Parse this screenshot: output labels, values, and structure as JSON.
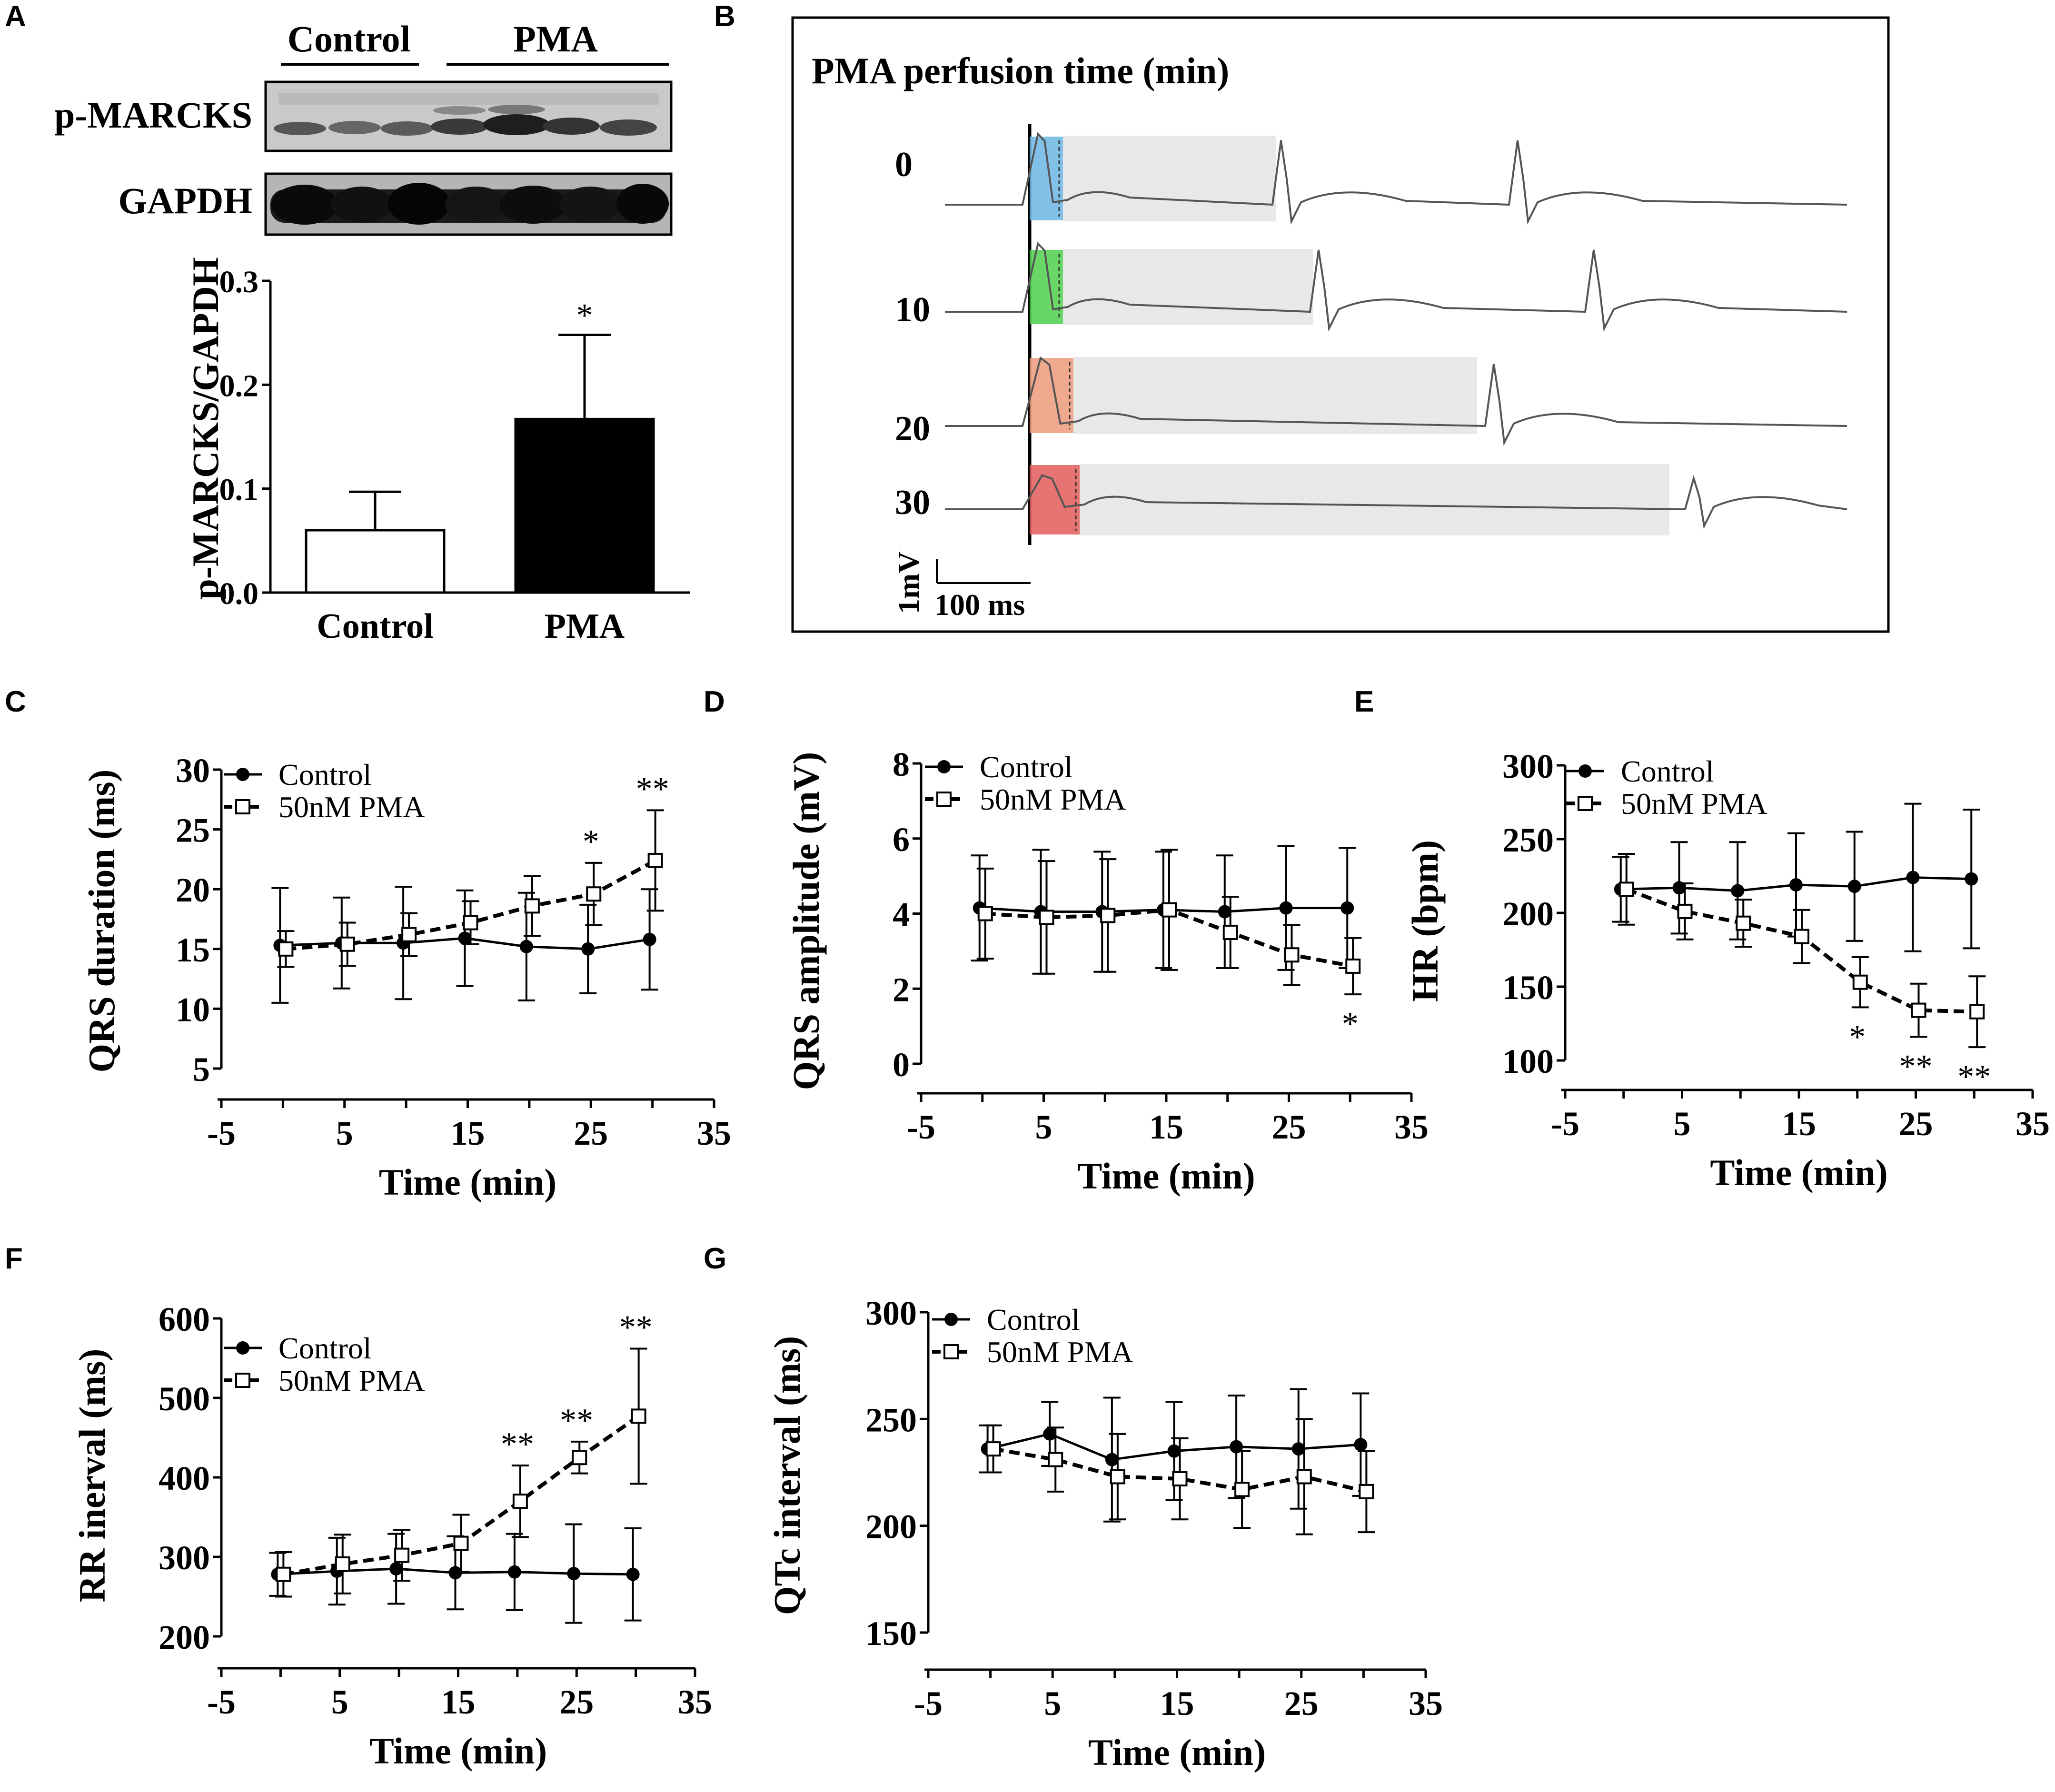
{
  "panel_labels": {
    "a": "A",
    "b": "B",
    "c": "C",
    "d": "D",
    "e": "E",
    "f": "F",
    "g": "G"
  },
  "colors": {
    "ink": "#000000",
    "control_fill": "#ffffff",
    "pma_fill": "#000000",
    "shade": "#e8e8e8",
    "qrs0": "#6bb6e3",
    "qrs10": "#4dd04d",
    "qrs20": "#eb9a7a",
    "qrs30": "#e35a5a",
    "trace": "#555555"
  },
  "blot": {
    "group_labels": [
      "Control",
      "PMA"
    ],
    "row_labels": [
      "p-MARCKS",
      "GAPDH"
    ]
  },
  "ecg": {
    "title": "PMA perfusion time (min)",
    "trace_labels": [
      "0",
      "10",
      "20",
      "30"
    ],
    "scale_v": "1mV",
    "scale_h": "100 ms"
  },
  "chart_data": [
    {
      "id": "A",
      "type": "bar",
      "categories": [
        "Control",
        "PMA"
      ],
      "values": [
        0.06,
        0.167
      ],
      "errors": [
        0.037,
        0.081
      ],
      "annotations": [
        "",
        "*"
      ],
      "ylabel": "p-MARCKS/GAPDH",
      "ylim": [
        0,
        0.3
      ],
      "yticks": [
        "0.0",
        "0.1",
        "0.2",
        "0.3"
      ]
    },
    {
      "id": "C",
      "type": "line",
      "ylabel": "QRS duration (ms)",
      "xlabel": "Time (min)",
      "xlim": [
        -5,
        35
      ],
      "ylim": [
        5,
        30
      ],
      "xticks": [
        "-5",
        "5",
        "15",
        "25",
        "35"
      ],
      "yticks": [
        "5",
        "10",
        "15",
        "20",
        "25",
        "30"
      ],
      "x": [
        0,
        5,
        10,
        15,
        20,
        25,
        30
      ],
      "series": [
        {
          "name": "Control",
          "values": [
            15.3,
            15.5,
            15.5,
            15.9,
            15.2,
            15.0,
            15.8
          ],
          "errors": [
            4.8,
            3.8,
            4.7,
            4.0,
            4.5,
            3.7,
            4.2
          ]
        },
        {
          "name": "50nM PMA",
          "values": [
            15.0,
            15.4,
            16.2,
            17.2,
            18.6,
            19.6,
            22.4
          ],
          "errors": [
            1.5,
            1.8,
            1.8,
            1.8,
            2.5,
            2.6,
            4.2
          ]
        }
      ],
      "annotations": [
        {
          "x": 25,
          "text": "*"
        },
        {
          "x": 30,
          "text": "**"
        }
      ]
    },
    {
      "id": "D",
      "type": "line",
      "ylabel": "QRS amplitude (mV)",
      "xlabel": "Time (min)",
      "xlim": [
        -5,
        35
      ],
      "ylim": [
        0,
        8
      ],
      "xticks": [
        "-5",
        "5",
        "15",
        "25",
        "35"
      ],
      "yticks": [
        "0",
        "2",
        "4",
        "6",
        "8"
      ],
      "x": [
        0,
        5,
        10,
        15,
        20,
        25,
        30
      ],
      "series": [
        {
          "name": "Control",
          "values": [
            4.15,
            4.05,
            4.05,
            4.1,
            4.05,
            4.15,
            4.15
          ],
          "errors": [
            1.4,
            1.65,
            1.6,
            1.55,
            1.5,
            1.65,
            1.6
          ]
        },
        {
          "name": "50nM PMA",
          "values": [
            4.0,
            3.9,
            3.95,
            4.1,
            3.5,
            2.9,
            2.6
          ],
          "errors": [
            1.2,
            1.5,
            1.5,
            1.6,
            0.95,
            0.8,
            0.75
          ]
        }
      ],
      "annotations": [
        {
          "x": 30,
          "text": "*"
        }
      ]
    },
    {
      "id": "E",
      "type": "line",
      "ylabel": "HR (bpm)",
      "xlabel": "Time (min)",
      "xlim": [
        -5,
        35
      ],
      "ylim": [
        100,
        300
      ],
      "xticks": [
        "-5",
        "5",
        "15",
        "25",
        "35"
      ],
      "yticks": [
        "100",
        "150",
        "200",
        "250",
        "300"
      ],
      "x": [
        0,
        5,
        10,
        15,
        20,
        25,
        30
      ],
      "series": [
        {
          "name": "Control",
          "values": [
            216,
            217,
            215,
            219,
            218,
            224,
            223
          ],
          "errors": [
            22,
            31,
            33,
            35,
            37,
            50,
            47
          ]
        },
        {
          "name": "50nM PMA",
          "values": [
            216,
            201,
            193,
            184,
            153,
            134,
            133
          ],
          "errors": [
            24,
            19,
            16,
            18,
            17,
            18,
            24
          ]
        }
      ],
      "annotations": [
        {
          "x": 20,
          "text": "*"
        },
        {
          "x": 25,
          "text": "**"
        },
        {
          "x": 30,
          "text": "**"
        }
      ]
    },
    {
      "id": "F",
      "type": "line",
      "ylabel": "RR inerval (ms)",
      "xlabel": "Time (min)",
      "xlim": [
        -5,
        35
      ],
      "ylim": [
        200,
        600
      ],
      "xticks": [
        "-5",
        "5",
        "15",
        "25",
        "35"
      ],
      "yticks": [
        "200",
        "300",
        "400",
        "500",
        "600"
      ],
      "x": [
        0,
        5,
        10,
        15,
        20,
        25,
        30
      ],
      "series": [
        {
          "name": "Control",
          "values": [
            278,
            282,
            285,
            280,
            281,
            279,
            278
          ],
          "errors": [
            27,
            42,
            44,
            46,
            48,
            62,
            58
          ]
        },
        {
          "name": "50nM PMA",
          "values": [
            278,
            291,
            302,
            317,
            370,
            425,
            477
          ],
          "errors": [
            28,
            37,
            32,
            36,
            45,
            20,
            85
          ]
        }
      ],
      "annotations": [
        {
          "x": 20,
          "text": "**"
        },
        {
          "x": 25,
          "text": "**"
        },
        {
          "x": 30,
          "text": "**"
        }
      ]
    },
    {
      "id": "G",
      "type": "line",
      "ylabel": "QTc interval (ms)",
      "xlabel": "Time (min)",
      "xlim": [
        -5,
        35
      ],
      "ylim": [
        150,
        300
      ],
      "xticks": [
        "-5",
        "5",
        "15",
        "25",
        "35"
      ],
      "yticks": [
        "150",
        "200",
        "250",
        "300"
      ],
      "x": [
        0,
        5,
        10,
        15,
        20,
        25,
        30
      ],
      "series": [
        {
          "name": "Control",
          "values": [
            236,
            243,
            231,
            235,
            237,
            236,
            238
          ],
          "errors": [
            11,
            15,
            29,
            23,
            24,
            28,
            24
          ]
        },
        {
          "name": "50nM PMA",
          "values": [
            236,
            231,
            223,
            222,
            217,
            223,
            216
          ],
          "errors": [
            11,
            15,
            20,
            19,
            18,
            27,
            19
          ]
        }
      ],
      "annotations": []
    }
  ]
}
